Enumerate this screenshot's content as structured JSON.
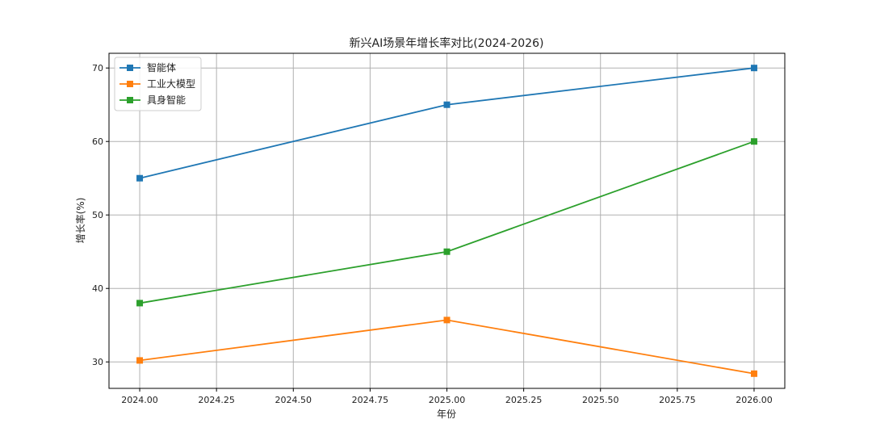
{
  "chart_data": {
    "type": "line",
    "title": "新兴AI场景年增长率对比(2024-2026)",
    "xlabel": "年份",
    "ylabel": "增长率(%)",
    "x": [
      2024.0,
      2025.0,
      2026.0
    ],
    "xlim": [
      2023.9,
      2026.1
    ],
    "ylim": [
      26.4,
      72.0
    ],
    "xticks": [
      2024.0,
      2024.25,
      2024.5,
      2024.75,
      2025.0,
      2025.25,
      2025.5,
      2025.75,
      2026.0
    ],
    "xtick_labels": [
      "2024.00",
      "2024.25",
      "2024.50",
      "2024.75",
      "2025.00",
      "2025.25",
      "2025.50",
      "2025.75",
      "2026.00"
    ],
    "yticks": [
      30,
      40,
      50,
      60,
      70
    ],
    "ytick_labels": [
      "30",
      "40",
      "50",
      "60",
      "70"
    ],
    "grid": true,
    "legend_position": "top-left",
    "series": [
      {
        "name": "智能体",
        "values": [
          55.0,
          65.0,
          70.0
        ],
        "color": "#1f77b4",
        "marker": "square"
      },
      {
        "name": "工业大模型",
        "values": [
          30.2,
          35.7,
          28.4
        ],
        "color": "#ff7f0e",
        "marker": "square"
      },
      {
        "name": "具身智能",
        "values": [
          38.0,
          45.0,
          60.0
        ],
        "color": "#2ca02c",
        "marker": "square"
      }
    ]
  }
}
